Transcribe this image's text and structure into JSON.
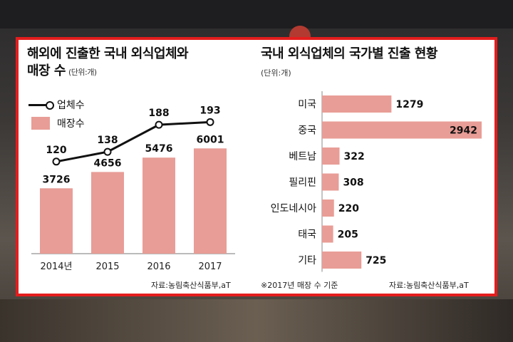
{
  "left_chart": {
    "title_line1": "해외에 진출한 국내 외식업체와",
    "title_line2": "매장 수",
    "unit": "(단위:개)",
    "legend_line": "업체수",
    "legend_bar": "매장수",
    "source": "자료:농림축산식품부,aT"
  },
  "right_chart": {
    "title": "국내 외식업체의 국가별 진출 현황",
    "unit": "(단위:개)",
    "note": "※2017년 매장 수 기준",
    "source": "자료:농림축산식품부,aT"
  },
  "colors": {
    "bar": "#e89d96",
    "line": "#111111",
    "frame": "#e41d1d"
  },
  "chart_data": [
    {
      "type": "bar",
      "title": "해외에 진출한 국내 외식업체와 매장 수",
      "categories": [
        "2014년",
        "2015",
        "2016",
        "2017"
      ],
      "series": [
        {
          "name": "업체수",
          "type": "line",
          "values": [
            120,
            138,
            188,
            193
          ]
        },
        {
          "name": "매장수",
          "type": "bar",
          "values": [
            3726,
            4656,
            5476,
            6001
          ]
        }
      ],
      "grid": false
    },
    {
      "type": "bar",
      "orientation": "horizontal",
      "title": "국내 외식업체의 국가별 진출 현황",
      "categories": [
        "미국",
        "중국",
        "베트남",
        "필리핀",
        "인도네시아",
        "태국",
        "기타"
      ],
      "values": [
        1279,
        2942,
        322,
        308,
        220,
        205,
        725
      ],
      "grid": false
    }
  ]
}
